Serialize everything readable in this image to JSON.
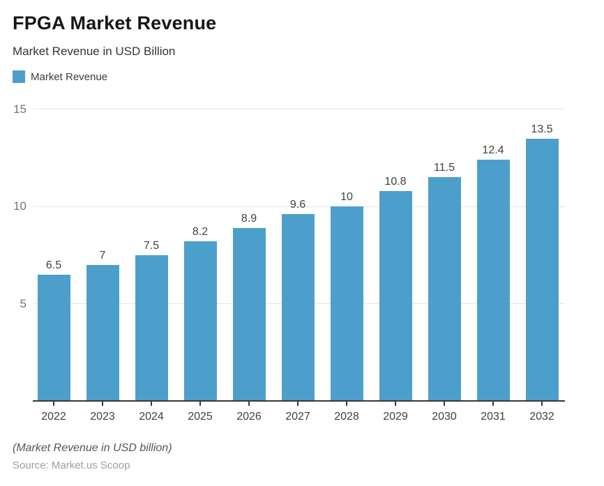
{
  "page": {
    "title": "FPGA Market Revenue",
    "subtitle": "Market Revenue in USD Billion",
    "footnote": "(Market Revenue in USD billion)",
    "source": "Source: Market.us Scoop"
  },
  "legend": {
    "label": "Market Revenue",
    "swatch_color": "#4D9FCB"
  },
  "chart_data": {
    "type": "bar",
    "title": "FPGA Market Revenue",
    "subtitle": "Market Revenue in USD Billion",
    "categories": [
      "2022",
      "2023",
      "2024",
      "2025",
      "2026",
      "2027",
      "2028",
      "2029",
      "2030",
      "2031",
      "2032"
    ],
    "series": [
      {
        "name": "Market Revenue",
        "values": [
          6.5,
          7,
          7.5,
          8.2,
          8.9,
          9.6,
          10,
          10.8,
          11.5,
          12.4,
          13.5
        ]
      }
    ],
    "value_labels": [
      "6.5",
      "7",
      "7.5",
      "8.2",
      "8.9",
      "9.6",
      "10",
      "10.8",
      "11.5",
      "12.4",
      "13.5"
    ],
    "xlabel": "",
    "ylabel": "",
    "ylim": [
      0,
      15
    ],
    "yticks": [
      5,
      10,
      15
    ],
    "grid": true,
    "legend_position": "top-left",
    "bar_color": "#4D9FCB",
    "gridline_color": "#e3e3e3",
    "axis_color": "#383838",
    "value_label_color": "#404040",
    "tick_label_color": "#757575"
  }
}
